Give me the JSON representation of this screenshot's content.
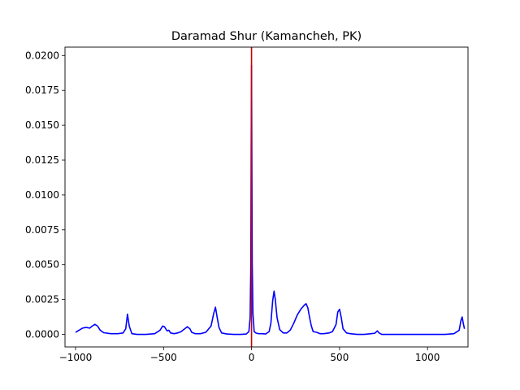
{
  "chart_data": {
    "type": "line",
    "title": "Daramad Shur (Kamancheh, PK)",
    "xlabel": "",
    "ylabel": "",
    "xlim": [
      -1060,
      1230
    ],
    "ylim": [
      -0.0009,
      0.0206
    ],
    "x_ticks": [
      -1000,
      -500,
      0,
      500,
      1000
    ],
    "x_tick_labels": [
      "−1000",
      "−500",
      "0",
      "500",
      "1000"
    ],
    "y_ticks": [
      0.0,
      0.0025,
      0.005,
      0.0075,
      0.01,
      0.0125,
      0.015,
      0.0175,
      0.02
    ],
    "y_tick_labels": [
      "0.0000",
      "0.0025",
      "0.0050",
      "0.0075",
      "0.0100",
      "0.0125",
      "0.0150",
      "0.0175",
      "0.0200"
    ],
    "grid": false,
    "series": [
      {
        "color": "#0000ff",
        "x": [
          -1000,
          -980,
          -960,
          -940,
          -920,
          -905,
          -890,
          -875,
          -860,
          -840,
          -800,
          -760,
          -730,
          -715,
          -705,
          -695,
          -680,
          -650,
          -600,
          -550,
          -520,
          -505,
          -495,
          -480,
          -470,
          -460,
          -440,
          -420,
          -400,
          -380,
          -365,
          -350,
          -340,
          -320,
          -290,
          -260,
          -230,
          -215,
          -205,
          -195,
          -185,
          -170,
          -140,
          -100,
          -60,
          -30,
          -15,
          -8,
          -4,
          -2,
          0,
          2,
          4,
          8,
          15,
          25,
          40,
          60,
          80,
          100,
          110,
          120,
          128,
          135,
          145,
          160,
          180,
          200,
          220,
          240,
          260,
          280,
          300,
          310,
          320,
          330,
          340,
          350,
          370,
          390,
          410,
          440,
          460,
          480,
          490,
          500,
          510,
          520,
          540,
          560,
          600,
          640,
          680,
          700,
          715,
          725,
          740,
          780,
          850,
          900,
          950,
          1000,
          1050,
          1100,
          1150,
          1180,
          1190,
          1197,
          1203,
          1210
        ],
        "y": [
          0.00015,
          0.0003,
          0.00045,
          0.0005,
          0.00045,
          0.0006,
          0.00072,
          0.0006,
          0.0003,
          0.00012,
          5e-05,
          5e-05,
          0.0001,
          0.0004,
          0.00145,
          0.0006,
          5e-05,
          0.0,
          0.0,
          5e-05,
          0.0003,
          0.0006,
          0.00055,
          0.00025,
          0.0003,
          0.0001,
          5e-05,
          0.0001,
          0.0002,
          0.0004,
          0.00055,
          0.0004,
          0.00015,
          5e-05,
          5e-05,
          0.00015,
          0.0006,
          0.0015,
          0.00195,
          0.0012,
          0.0005,
          0.0001,
          3e-05,
          0.0,
          0.0,
          3e-05,
          0.0002,
          0.0012,
          0.005,
          0.013,
          0.0193,
          0.012,
          0.005,
          0.0015,
          0.0002,
          0.0001,
          5e-05,
          5e-05,
          3e-05,
          0.0002,
          0.0008,
          0.0024,
          0.0031,
          0.0025,
          0.0012,
          0.00035,
          0.0001,
          0.0001,
          0.0003,
          0.0008,
          0.0014,
          0.0018,
          0.0021,
          0.0022,
          0.0019,
          0.0012,
          0.0006,
          0.0002,
          0.00015,
          5e-05,
          5e-05,
          0.0001,
          0.0002,
          0.0007,
          0.0016,
          0.0018,
          0.0012,
          0.0004,
          0.0001,
          5e-05,
          0.0,
          0.0,
          5e-05,
          8e-05,
          0.00025,
          0.0001,
          0.0,
          0.0,
          0.0,
          0.0,
          0.0,
          0.0,
          0.0,
          0.0,
          5e-05,
          0.0003,
          0.001,
          0.00125,
          0.0008,
          0.0004
        ]
      }
    ],
    "vline": {
      "x": 0,
      "color": "#cc0000"
    }
  }
}
